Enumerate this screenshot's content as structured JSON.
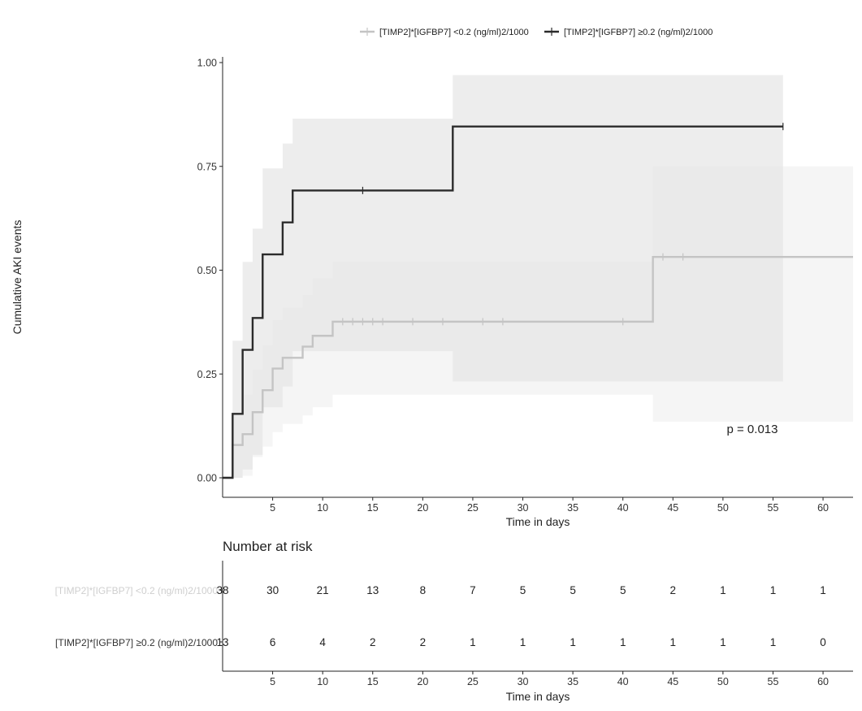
{
  "chart_data": {
    "type": "line",
    "subtype": "kaplan-meier-cumulative-events",
    "ylabel": "Cumulative AKI events",
    "xlabel": "Time in days",
    "xlim": [
      0,
      63
    ],
    "ylim": [
      0,
      1
    ],
    "x_ticks": [
      5,
      10,
      15,
      20,
      25,
      30,
      35,
      40,
      45,
      50,
      55,
      60
    ],
    "y_ticks": [
      0,
      0.25,
      0.5,
      0.75,
      1
    ],
    "y_tick_labels": [
      "0.00",
      "0.25",
      "0.50",
      "0.75",
      "1.00"
    ],
    "grid": false,
    "legend_position": "top",
    "annotation": "p = 0.013",
    "series": [
      {
        "name": "[TIMP2]*[IGFBP7] <0.2 (ng/ml)2/1000",
        "color": "#c4c4c4",
        "band_color": "#ededed",
        "band_opacity": 0.55,
        "steps": [
          {
            "t": 0,
            "y": 0
          },
          {
            "t": 1,
            "y": 0.079
          },
          {
            "t": 2,
            "y": 0.105
          },
          {
            "t": 3,
            "y": 0.158
          },
          {
            "t": 4,
            "y": 0.211
          },
          {
            "t": 5,
            "y": 0.263
          },
          {
            "t": 6,
            "y": 0.289
          },
          {
            "t": 8,
            "y": 0.316
          },
          {
            "t": 9,
            "y": 0.342
          },
          {
            "t": 11,
            "y": 0.376
          },
          {
            "t": 43,
            "y": 0.532
          }
        ],
        "t_end": 63,
        "censor_times": [
          12,
          13,
          14,
          15,
          16,
          19,
          22,
          26,
          28,
          40,
          44,
          46
        ],
        "ci": [
          {
            "t": 0,
            "lo": 0,
            "hi": 0
          },
          {
            "t": 1,
            "lo": 0,
            "hi": 0.16
          },
          {
            "t": 2,
            "lo": 0.005,
            "hi": 0.2
          },
          {
            "t": 3,
            "lo": 0.05,
            "hi": 0.26
          },
          {
            "t": 4,
            "lo": 0.075,
            "hi": 0.32
          },
          {
            "t": 5,
            "lo": 0.11,
            "hi": 0.38
          },
          {
            "t": 6,
            "lo": 0.13,
            "hi": 0.41
          },
          {
            "t": 8,
            "lo": 0.15,
            "hi": 0.44
          },
          {
            "t": 9,
            "lo": 0.17,
            "hi": 0.48
          },
          {
            "t": 11,
            "lo": 0.2,
            "hi": 0.52
          },
          {
            "t": 43,
            "lo": 0.135,
            "hi": 0.75
          }
        ]
      },
      {
        "name": "[TIMP2]*[IGFBP7] ≥0.2 (ng/ml)2/1000",
        "color": "#2b2b2b",
        "band_color": "#e6e6e6",
        "band_opacity": 0.7,
        "steps": [
          {
            "t": 0,
            "y": 0
          },
          {
            "t": 1,
            "y": 0.154
          },
          {
            "t": 2,
            "y": 0.308
          },
          {
            "t": 3,
            "y": 0.385
          },
          {
            "t": 4,
            "y": 0.538
          },
          {
            "t": 6,
            "y": 0.615
          },
          {
            "t": 7,
            "y": 0.692
          },
          {
            "t": 23,
            "y": 0.846
          }
        ],
        "t_end": 56,
        "censor_times": [
          14,
          56
        ],
        "ci": [
          {
            "t": 0,
            "lo": 0,
            "hi": 0
          },
          {
            "t": 1,
            "lo": 0,
            "hi": 0.33
          },
          {
            "t": 2,
            "lo": 0.02,
            "hi": 0.52
          },
          {
            "t": 3,
            "lo": 0.055,
            "hi": 0.6
          },
          {
            "t": 4,
            "lo": 0.17,
            "hi": 0.745
          },
          {
            "t": 6,
            "lo": 0.22,
            "hi": 0.805
          },
          {
            "t": 7,
            "lo": 0.305,
            "hi": 0.865
          },
          {
            "t": 23,
            "lo": 0.232,
            "hi": 0.97
          }
        ]
      }
    ]
  },
  "risk_table": {
    "title": "Number at risk",
    "xlabel": "Time in days",
    "times": [
      0,
      5,
      10,
      15,
      20,
      25,
      30,
      35,
      40,
      45,
      50,
      55,
      60
    ],
    "x_ticks": [
      5,
      10,
      15,
      20,
      25,
      30,
      35,
      40,
      45,
      50,
      55,
      60
    ],
    "rows": [
      {
        "label": "[TIMP2]*[IGFBP7] <0.2 (ng/ml)2/1000",
        "color": "#cfcfcf",
        "counts": [
          "38",
          "30",
          "21",
          "13",
          "8",
          "7",
          "5",
          "5",
          "5",
          "2",
          "1",
          "1",
          "1"
        ]
      },
      {
        "label": "[TIMP2]*[IGFBP7] ≥0.2 (ng/ml)2/1000",
        "color": "#333333",
        "counts": [
          "13",
          "6",
          "4",
          "2",
          "2",
          "1",
          "1",
          "1",
          "1",
          "1",
          "1",
          "1",
          "0"
        ]
      }
    ]
  }
}
